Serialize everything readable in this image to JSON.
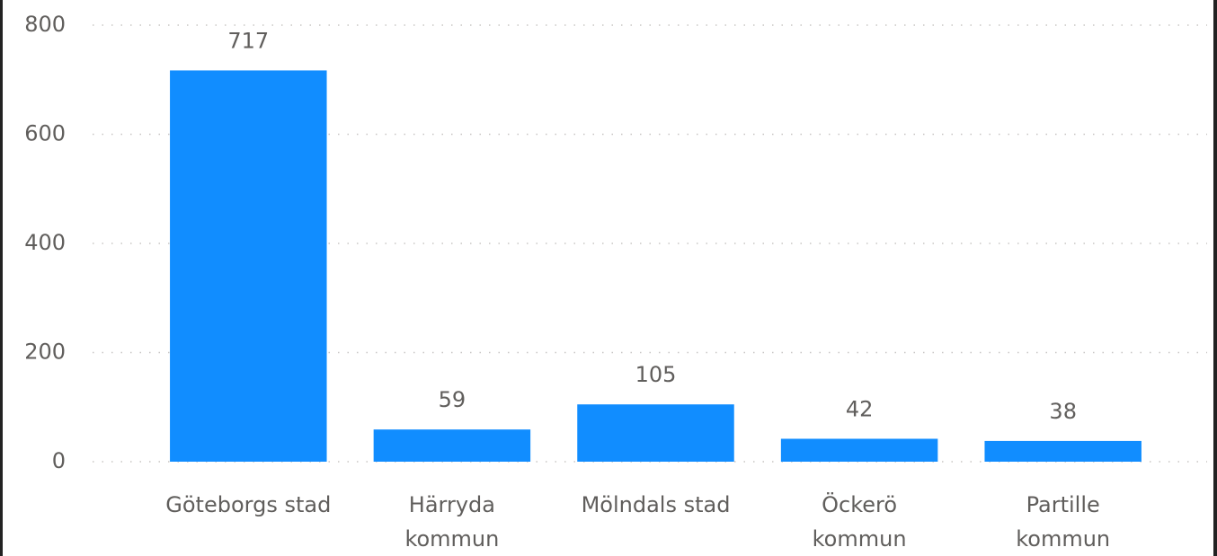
{
  "chart_data": {
    "type": "bar",
    "categories": [
      "Göteborgs stad",
      "Härryda kommun",
      "Mölndals stad",
      "Öckerö kommun",
      "Partille kommun"
    ],
    "values": [
      717,
      59,
      105,
      42,
      38
    ],
    "color": "#118dff",
    "ylim": [
      0,
      800
    ],
    "yticks": [
      0,
      200,
      400,
      600,
      800
    ],
    "grid": true
  }
}
